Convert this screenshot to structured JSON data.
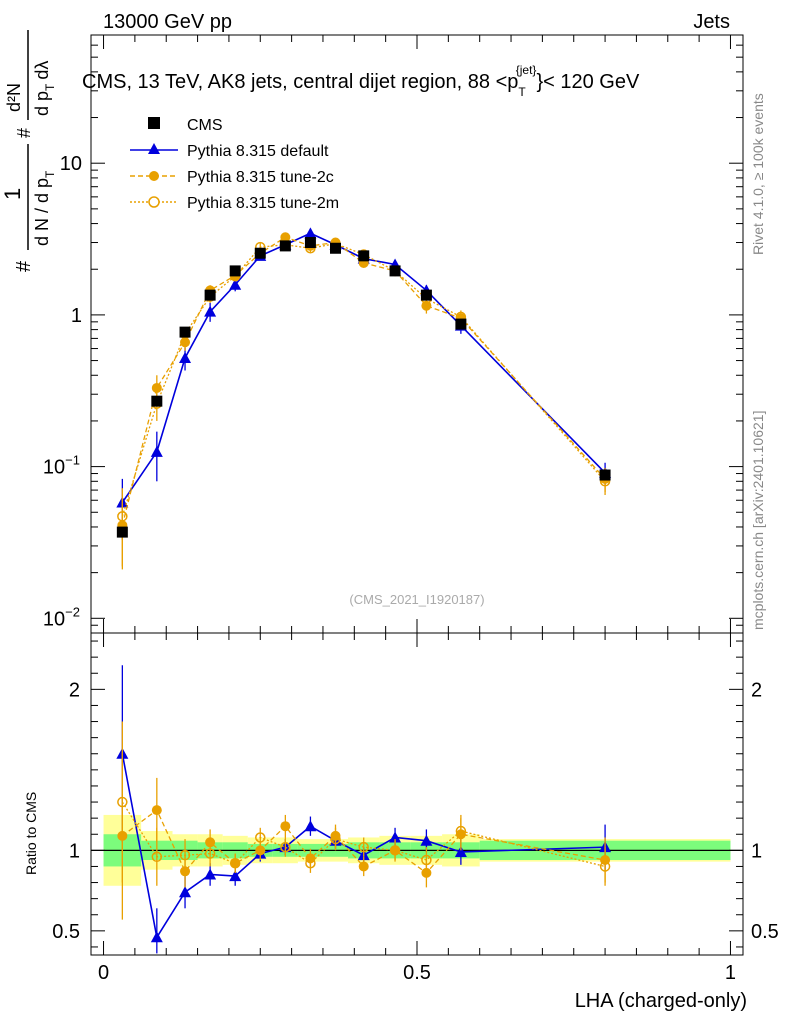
{
  "header": {
    "left": "13000 GeV pp",
    "right": "Jets"
  },
  "side_labels": {
    "rivet": "Rivet 4.1.0, ≥ 100k events",
    "mcplots": "mcplots.cern.ch [arXiv:2401.10621]"
  },
  "chart_data": {
    "type": "scatter",
    "title": "CMS, 13 TeV, AK8 jets, central dijet region, 88 <p",
    "title_sup": "{jet}",
    "title_sub": "T",
    "title_end": "}< 120 GeV",
    "watermark": "(CMS_2021_I1920187)",
    "xlabel": "LHA (charged-only)",
    "ylabel_top": "#",
    "ylabel_frac_num": "1",
    "ylabel_frac_den_a": "d N / d p",
    "ylabel_frac_den_sub": "T",
    "ylabel_right_num": "d²N",
    "ylabel_right_den": "d p",
    "ylabel_right_den_sub": "T",
    "ylabel_right_den_end": "dλ",
    "ratio_ylabel": "Ratio to CMS",
    "xlim": [
      -0.02,
      1.02
    ],
    "ylim_log": [
      0.008,
      70
    ],
    "ratio_ylim": [
      0.35,
      2.35
    ],
    "x_ticks": [
      0,
      0.5,
      1
    ],
    "x_tick_labels": [
      "0",
      "0.5",
      "1"
    ],
    "y_ticks": [
      {
        "v": 10,
        "base": "10",
        "exp": ""
      },
      {
        "v": 1,
        "base": "1",
        "exp": ""
      },
      {
        "v": 0.1,
        "base": "10",
        "exp": "−1"
      },
      {
        "v": 0.01,
        "base": "10",
        "exp": "−2"
      }
    ],
    "ratio_y_ticks": [
      {
        "v": 2,
        "label": "2"
      },
      {
        "v": 1,
        "label": "1"
      },
      {
        "v": 0.5,
        "label": "0.5"
      }
    ],
    "x": [
      0.03,
      0.085,
      0.13,
      0.17,
      0.21,
      0.25,
      0.29,
      0.33,
      0.37,
      0.415,
      0.465,
      0.515,
      0.57,
      0.8
    ],
    "bin_edges": [
      0.0,
      0.06,
      0.11,
      0.15,
      0.19,
      0.23,
      0.27,
      0.31,
      0.35,
      0.39,
      0.44,
      0.49,
      0.54,
      0.6,
      1.0
    ],
    "cms": {
      "name": "CMS",
      "values": [
        0.037,
        0.27,
        0.77,
        1.35,
        1.95,
        2.55,
        2.85,
        3.0,
        2.75,
        2.45,
        1.95,
        1.35,
        0.87,
        0.088
      ],
      "stat_band": [
        0.1,
        0.06,
        0.06,
        0.05,
        0.05,
        0.04,
        0.04,
        0.04,
        0.04,
        0.05,
        0.05,
        0.05,
        0.05,
        0.06
      ],
      "tot_band": [
        0.22,
        0.12,
        0.1,
        0.1,
        0.09,
        0.08,
        0.08,
        0.07,
        0.07,
        0.08,
        0.09,
        0.09,
        0.1,
        0.07
      ]
    },
    "series": [
      {
        "name": "Pythia 8.315 default",
        "color": "#0000dd",
        "marker": "triangle",
        "dash": "",
        "values": [
          0.058,
          0.125,
          0.52,
          1.05,
          1.58,
          2.45,
          2.9,
          3.45,
          2.9,
          2.35,
          2.15,
          1.45,
          0.85,
          0.091
        ],
        "errors": [
          0.025,
          0.045,
          0.09,
          0.15,
          0.15,
          0.15,
          0.2,
          0.25,
          0.2,
          0.15,
          0.15,
          0.12,
          0.1,
          0.015
        ],
        "ratio": [
          1.6,
          0.46,
          0.74,
          0.85,
          0.84,
          0.98,
          1.02,
          1.15,
          1.06,
          0.97,
          1.08,
          1.06,
          0.99,
          1.02
        ],
        "ratio_err": [
          0.55,
          0.18,
          0.1,
          0.07,
          0.06,
          0.05,
          0.05,
          0.06,
          0.05,
          0.05,
          0.06,
          0.07,
          0.08,
          0.14
        ]
      },
      {
        "name": "Pythia 8.315 tune-2c",
        "color": "#e8a000",
        "marker": "dot",
        "dash": "5,3",
        "values": [
          0.041,
          0.33,
          0.66,
          1.45,
          1.82,
          2.55,
          3.25,
          2.85,
          3.0,
          2.2,
          1.95,
          1.15,
          0.95,
          0.083
        ],
        "errors": [
          0.02,
          0.07,
          0.08,
          0.12,
          0.14,
          0.17,
          0.2,
          0.2,
          0.17,
          0.14,
          0.15,
          0.13,
          0.1,
          0.015
        ],
        "ratio": [
          1.09,
          1.25,
          0.87,
          1.05,
          0.92,
          1.0,
          1.15,
          0.95,
          1.09,
          0.9,
          1.0,
          0.86,
          1.1,
          0.94
        ],
        "ratio_err": [
          0.52,
          0.2,
          0.1,
          0.08,
          0.06,
          0.06,
          0.07,
          0.06,
          0.07,
          0.06,
          0.07,
          0.09,
          0.1,
          0.14
        ]
      },
      {
        "name": "Pythia 8.315 tune-2m",
        "color": "#e8a000",
        "marker": "circle",
        "dash": "2,2",
        "values": [
          0.047,
          0.26,
          0.75,
          1.32,
          1.8,
          2.8,
          2.9,
          2.75,
          2.95,
          2.5,
          1.95,
          1.28,
          0.97,
          0.08
        ],
        "errors": [
          0.025,
          0.06,
          0.08,
          0.12,
          0.14,
          0.17,
          0.18,
          0.17,
          0.17,
          0.14,
          0.15,
          0.11,
          0.1,
          0.015
        ],
        "ratio": [
          1.3,
          0.96,
          0.97,
          0.98,
          0.92,
          1.08,
          1.02,
          0.92,
          1.07,
          1.02,
          1.0,
          0.94,
          1.12,
          0.9
        ],
        "ratio_err": [
          0.5,
          0.18,
          0.1,
          0.08,
          0.06,
          0.06,
          0.06,
          0.06,
          0.07,
          0.06,
          0.06,
          0.08,
          0.1,
          0.12
        ]
      }
    ],
    "colors": {
      "stat_band": "#7cfc7c",
      "tot_band": "#ffff99",
      "cms_marker": "#000000"
    }
  }
}
